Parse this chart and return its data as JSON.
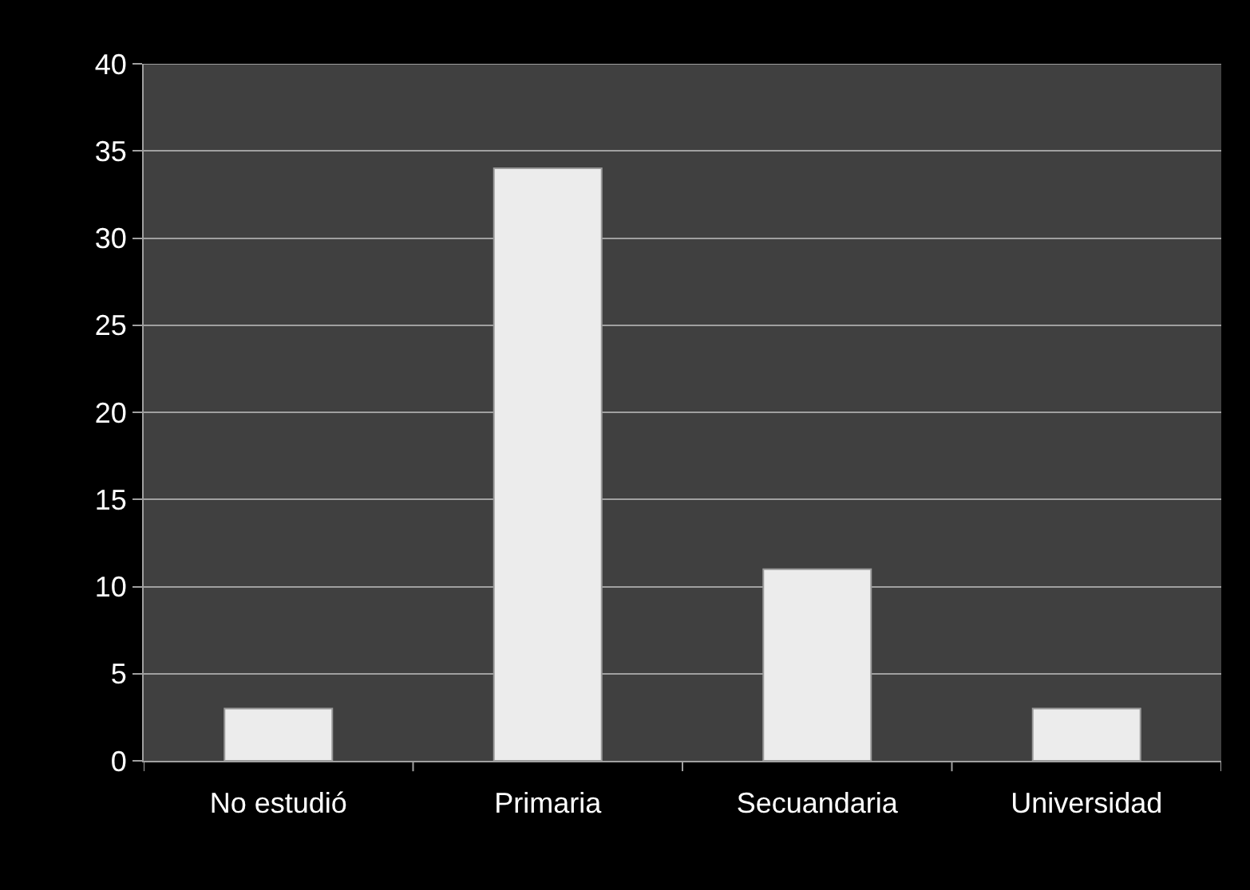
{
  "chart_data": {
    "type": "bar",
    "categories": [
      "No estudió",
      "Primaria",
      "Secuandaria",
      "Universidad"
    ],
    "values": [
      3,
      34,
      11,
      3
    ],
    "color": "#ececec",
    "ylim": [
      0,
      40
    ],
    "yticks": [
      0,
      5,
      10,
      15,
      20,
      25,
      30,
      35,
      40
    ],
    "grid": "y"
  }
}
